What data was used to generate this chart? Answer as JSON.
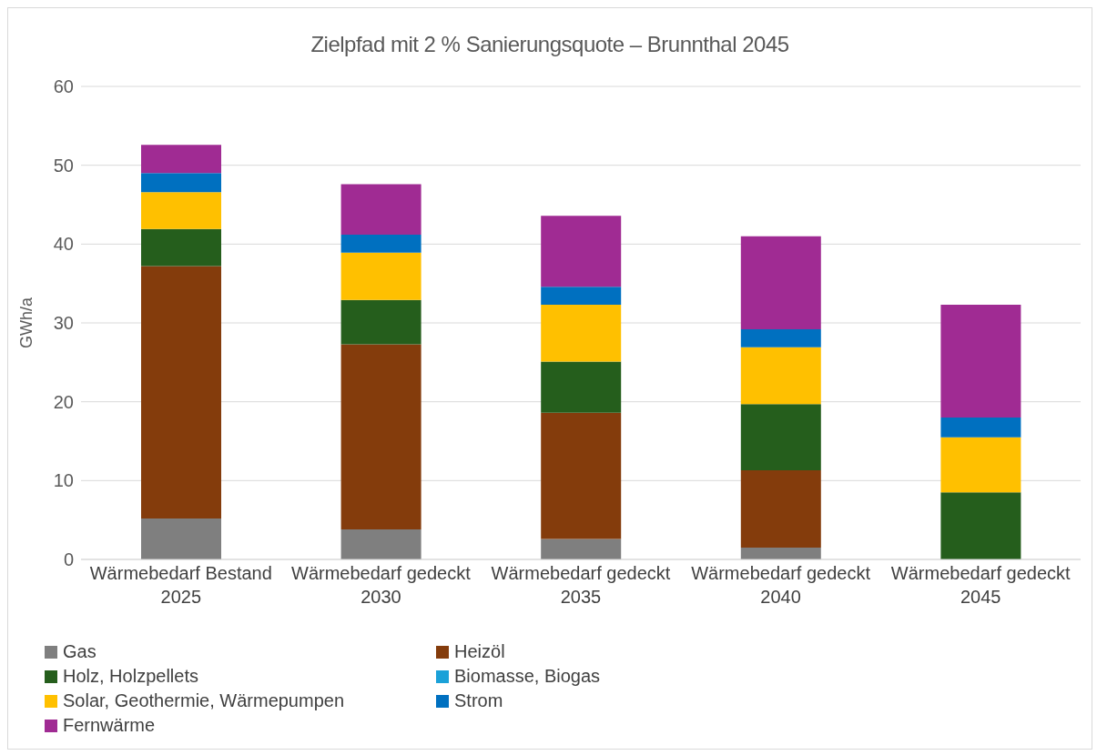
{
  "chart_data": {
    "type": "bar",
    "title": "Zielpfad mit 2 % Sanierungsquote – Brunnthal 2045",
    "ylabel": "GWh/a",
    "categories": [
      "Wärmebedarf Bestand\n2025",
      "Wärmebedarf gedeckt\n2030",
      "Wärmebedarf gedeckt\n2035",
      "Wärmebedarf gedeckt\n2040",
      "Wärmebedarf gedeckt\n2045"
    ],
    "stacked": true,
    "ylim": [
      0,
      60
    ],
    "yticks": [
      0,
      10,
      20,
      30,
      40,
      50,
      60
    ],
    "grid": "y",
    "legend": "bottom",
    "series": [
      {
        "name": "Gas",
        "color": "#7f7f7f",
        "values": [
          5.2,
          3.8,
          2.6,
          1.5,
          0
        ]
      },
      {
        "name": "Heizöl",
        "color": "#843c0c",
        "values": [
          32.0,
          23.5,
          16.0,
          9.8,
          0
        ]
      },
      {
        "name": "Holz, Holzpellets",
        "color": "#255e1c",
        "values": [
          4.7,
          5.6,
          6.5,
          8.4,
          8.5
        ]
      },
      {
        "name": "Biomasse, Biogas",
        "color": "#1ba1d8",
        "values": [
          0,
          0,
          0,
          0,
          0
        ]
      },
      {
        "name": "Solar, Geothermie, Wärmepumpen",
        "color": "#ffc000",
        "values": [
          4.7,
          6.0,
          7.2,
          7.2,
          7.0
        ]
      },
      {
        "name": "Strom",
        "color": "#0070c0",
        "values": [
          2.4,
          2.3,
          2.3,
          2.3,
          2.5
        ]
      },
      {
        "name": "Fernwärme",
        "color": "#a02b93",
        "values": [
          3.6,
          6.4,
          9.0,
          11.8,
          14.3
        ]
      }
    ]
  }
}
